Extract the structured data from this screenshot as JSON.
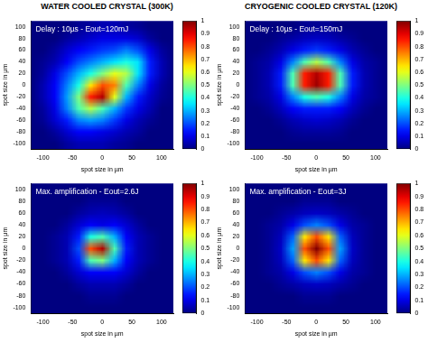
{
  "chart_data": [
    {
      "type": "heatmap",
      "title": "WATER COOLED CRYSTAL (300K)",
      "annotation": "Delay : 10µs - Eout=120mJ",
      "xlabel": "spot size in µm",
      "ylabel": "spot size in µm",
      "xlim": [
        -120,
        120
      ],
      "ylim": [
        -110,
        110
      ],
      "xticks": [
        -100,
        -50,
        0,
        50,
        100
      ],
      "yticks": [
        -100,
        -80,
        -60,
        -40,
        -20,
        0,
        20,
        40,
        60,
        80,
        100
      ],
      "grid": false,
      "x": [
        -120,
        -100,
        -80,
        -60,
        -40,
        -20,
        0,
        20,
        40,
        60,
        80,
        100,
        120
      ],
      "y": [
        100,
        80,
        60,
        40,
        20,
        0,
        -20,
        -40,
        -60,
        -80,
        -100
      ],
      "cells": [
        [
          0,
          0,
          0,
          0,
          0.02,
          0.03,
          0.05,
          0.05,
          0.03,
          0.02,
          0,
          0,
          0
        ],
        [
          0,
          0,
          0,
          0.03,
          0.05,
          0.08,
          0.1,
          0.1,
          0.1,
          0.08,
          0.03,
          0,
          0
        ],
        [
          0,
          0,
          0.03,
          0.08,
          0.12,
          0.15,
          0.18,
          0.2,
          0.25,
          0.2,
          0.1,
          0.03,
          0
        ],
        [
          0,
          0.02,
          0.05,
          0.12,
          0.2,
          0.25,
          0.3,
          0.35,
          0.4,
          0.35,
          0.15,
          0.05,
          0
        ],
        [
          0,
          0.03,
          0.1,
          0.2,
          0.3,
          0.4,
          0.5,
          0.6,
          0.55,
          0.35,
          0.15,
          0.05,
          0
        ],
        [
          0,
          0.05,
          0.12,
          0.25,
          0.4,
          0.65,
          0.8,
          0.75,
          0.45,
          0.25,
          0.1,
          0.03,
          0
        ],
        [
          0,
          0.05,
          0.12,
          0.28,
          0.5,
          0.85,
          0.95,
          0.6,
          0.3,
          0.15,
          0.07,
          0.02,
          0
        ],
        [
          0,
          0.03,
          0.1,
          0.25,
          0.45,
          0.55,
          0.45,
          0.3,
          0.18,
          0.1,
          0.05,
          0,
          0
        ],
        [
          0,
          0.02,
          0.08,
          0.15,
          0.25,
          0.28,
          0.25,
          0.18,
          0.1,
          0.05,
          0.02,
          0,
          0
        ],
        [
          0,
          0,
          0.03,
          0.08,
          0.12,
          0.12,
          0.1,
          0.08,
          0.05,
          0.03,
          0,
          0,
          0
        ],
        [
          0,
          0,
          0,
          0.03,
          0.05,
          0.05,
          0.05,
          0.03,
          0.02,
          0,
          0,
          0,
          0
        ]
      ],
      "colorbar": {
        "range": [
          0,
          1
        ],
        "ticks": [
          0,
          0.1,
          0.2,
          0.3,
          0.4,
          0.5,
          0.6,
          0.7,
          0.8,
          0.9,
          1
        ]
      }
    },
    {
      "type": "heatmap",
      "title": "CRYOGENIC COOLED CRYSTAL (120K)",
      "annotation": "Delay : 10µs - Eout=150mJ",
      "xlabel": "spot size in µm",
      "ylabel": "spot size in µm",
      "xlim": [
        -120,
        120
      ],
      "ylim": [
        -110,
        110
      ],
      "xticks": [
        -100,
        -50,
        0,
        50,
        100
      ],
      "yticks": [
        -100,
        -80,
        -60,
        -40,
        -20,
        0,
        20,
        40,
        60,
        80,
        100
      ],
      "grid": false,
      "x": [
        -120,
        -100,
        -80,
        -60,
        -40,
        -20,
        0,
        20,
        40,
        60,
        80,
        100,
        120
      ],
      "y": [
        100,
        80,
        60,
        40,
        20,
        0,
        -20,
        -40,
        -60,
        -80,
        -100
      ],
      "cells": [
        [
          0,
          0,
          0,
          0,
          0,
          0.02,
          0.02,
          0.02,
          0,
          0,
          0,
          0,
          0
        ],
        [
          0,
          0,
          0,
          0.02,
          0.04,
          0.06,
          0.07,
          0.06,
          0.04,
          0.02,
          0,
          0,
          0
        ],
        [
          0,
          0,
          0.02,
          0.05,
          0.1,
          0.15,
          0.18,
          0.15,
          0.1,
          0.05,
          0.02,
          0,
          0
        ],
        [
          0,
          0.02,
          0.04,
          0.1,
          0.25,
          0.45,
          0.55,
          0.45,
          0.25,
          0.1,
          0.04,
          0.02,
          0
        ],
        [
          0,
          0.02,
          0.05,
          0.15,
          0.45,
          0.85,
          0.95,
          0.85,
          0.45,
          0.15,
          0.05,
          0.02,
          0
        ],
        [
          0,
          0.02,
          0.05,
          0.15,
          0.45,
          0.85,
          0.97,
          0.85,
          0.45,
          0.15,
          0.05,
          0.02,
          0
        ],
        [
          0,
          0.02,
          0.04,
          0.1,
          0.25,
          0.4,
          0.45,
          0.4,
          0.25,
          0.1,
          0.04,
          0.02,
          0
        ],
        [
          0,
          0,
          0.02,
          0.06,
          0.12,
          0.15,
          0.15,
          0.15,
          0.12,
          0.06,
          0.02,
          0,
          0
        ],
        [
          0,
          0,
          0,
          0.02,
          0.05,
          0.07,
          0.08,
          0.07,
          0.05,
          0.02,
          0,
          0,
          0
        ],
        [
          0,
          0,
          0,
          0,
          0.02,
          0.03,
          0.03,
          0.03,
          0.02,
          0,
          0,
          0,
          0
        ],
        [
          0,
          0,
          0,
          0,
          0,
          0,
          0,
          0,
          0,
          0,
          0,
          0,
          0
        ]
      ],
      "colorbar": {
        "range": [
          0,
          1
        ],
        "ticks": [
          0,
          0.1,
          0.2,
          0.3,
          0.4,
          0.5,
          0.6,
          0.7,
          0.8,
          0.9,
          1
        ]
      }
    },
    {
      "type": "heatmap",
      "annotation": "Max. amplification - Eout=2.6J",
      "xlabel": "spot size in µm",
      "ylabel": "spot size in µm",
      "xlim": [
        -120,
        120
      ],
      "ylim": [
        -110,
        110
      ],
      "xticks": [
        -100,
        -50,
        0,
        50,
        100
      ],
      "yticks": [
        -100,
        -80,
        -60,
        -40,
        -20,
        0,
        20,
        40,
        60,
        80,
        100
      ],
      "grid": false,
      "x": [
        -120,
        -100,
        -80,
        -60,
        -40,
        -20,
        0,
        20,
        40,
        60,
        80,
        100,
        120
      ],
      "y": [
        100,
        80,
        60,
        40,
        20,
        0,
        -20,
        -40,
        -60,
        -80,
        -100
      ],
      "cells": [
        [
          0,
          0,
          0,
          0,
          0,
          0,
          0,
          0,
          0,
          0,
          0,
          0,
          0
        ],
        [
          0,
          0,
          0,
          0,
          0,
          0.02,
          0.02,
          0.02,
          0,
          0,
          0,
          0,
          0
        ],
        [
          0,
          0,
          0,
          0,
          0.03,
          0.05,
          0.06,
          0.05,
          0.03,
          0,
          0,
          0,
          0
        ],
        [
          0,
          0,
          0,
          0.03,
          0.08,
          0.12,
          0.1,
          0.12,
          0.08,
          0.03,
          0,
          0,
          0
        ],
        [
          0,
          0,
          0.02,
          0.05,
          0.15,
          0.4,
          0.45,
          0.3,
          0.12,
          0.05,
          0.02,
          0,
          0
        ],
        [
          0,
          0,
          0.02,
          0.05,
          0.2,
          0.8,
          0.95,
          0.45,
          0.15,
          0.05,
          0.02,
          0,
          0
        ],
        [
          0,
          0,
          0.02,
          0.05,
          0.15,
          0.45,
          0.5,
          0.3,
          0.12,
          0.05,
          0.02,
          0,
          0
        ],
        [
          0,
          0,
          0,
          0.03,
          0.08,
          0.12,
          0.12,
          0.12,
          0.08,
          0.03,
          0,
          0,
          0
        ],
        [
          0,
          0,
          0,
          0,
          0.03,
          0.05,
          0.05,
          0.05,
          0.03,
          0,
          0,
          0,
          0
        ],
        [
          0,
          0,
          0,
          0,
          0,
          0.02,
          0.02,
          0.02,
          0,
          0,
          0,
          0,
          0
        ],
        [
          0,
          0,
          0,
          0,
          0,
          0,
          0,
          0,
          0,
          0,
          0,
          0,
          0
        ]
      ],
      "colorbar": {
        "range": [
          0,
          1
        ],
        "ticks": [
          0,
          0.1,
          0.2,
          0.3,
          0.4,
          0.5,
          0.6,
          0.7,
          0.8,
          0.9,
          1
        ]
      }
    },
    {
      "type": "heatmap",
      "annotation": "Max. amplification - Eout=3J",
      "xlabel": "spot size in µm",
      "ylabel": "spot size in µm",
      "xlim": [
        -120,
        120
      ],
      "ylim": [
        -110,
        110
      ],
      "xticks": [
        -100,
        -50,
        0,
        50,
        100
      ],
      "yticks": [
        -100,
        -80,
        -60,
        -40,
        -20,
        0,
        20,
        40,
        60,
        80,
        100
      ],
      "grid": false,
      "x": [
        -120,
        -100,
        -80,
        -60,
        -40,
        -20,
        0,
        20,
        40,
        60,
        80,
        100,
        120
      ],
      "y": [
        100,
        80,
        60,
        40,
        20,
        0,
        -20,
        -40,
        -60,
        -80,
        -100
      ],
      "cells": [
        [
          0,
          0,
          0,
          0,
          0,
          0,
          0,
          0,
          0,
          0,
          0,
          0,
          0
        ],
        [
          0,
          0,
          0,
          0,
          0,
          0.02,
          0.02,
          0.02,
          0,
          0,
          0,
          0,
          0
        ],
        [
          0,
          0,
          0,
          0.02,
          0.04,
          0.06,
          0.07,
          0.06,
          0.04,
          0.02,
          0,
          0,
          0
        ],
        [
          0,
          0,
          0.02,
          0.04,
          0.1,
          0.2,
          0.25,
          0.2,
          0.1,
          0.04,
          0.02,
          0,
          0
        ],
        [
          0,
          0,
          0.02,
          0.06,
          0.22,
          0.65,
          0.8,
          0.65,
          0.22,
          0.06,
          0.02,
          0,
          0
        ],
        [
          0,
          0,
          0.02,
          0.07,
          0.28,
          0.8,
          1,
          0.8,
          0.28,
          0.07,
          0.02,
          0,
          0
        ],
        [
          0,
          0,
          0.02,
          0.06,
          0.22,
          0.65,
          0.8,
          0.65,
          0.22,
          0.06,
          0.02,
          0,
          0
        ],
        [
          0,
          0,
          0.02,
          0.04,
          0.1,
          0.2,
          0.25,
          0.2,
          0.1,
          0.04,
          0.02,
          0,
          0
        ],
        [
          0,
          0,
          0,
          0.02,
          0.04,
          0.06,
          0.07,
          0.06,
          0.04,
          0.02,
          0,
          0,
          0
        ],
        [
          0,
          0,
          0,
          0,
          0,
          0.02,
          0.02,
          0.02,
          0,
          0,
          0,
          0,
          0
        ],
        [
          0,
          0,
          0,
          0,
          0,
          0,
          0,
          0,
          0,
          0,
          0,
          0,
          0
        ]
      ],
      "colorbar": {
        "range": [
          0,
          1
        ],
        "ticks": [
          0,
          0.1,
          0.2,
          0.3,
          0.4,
          0.5,
          0.6,
          0.7,
          0.8,
          0.9,
          1
        ]
      }
    }
  ]
}
